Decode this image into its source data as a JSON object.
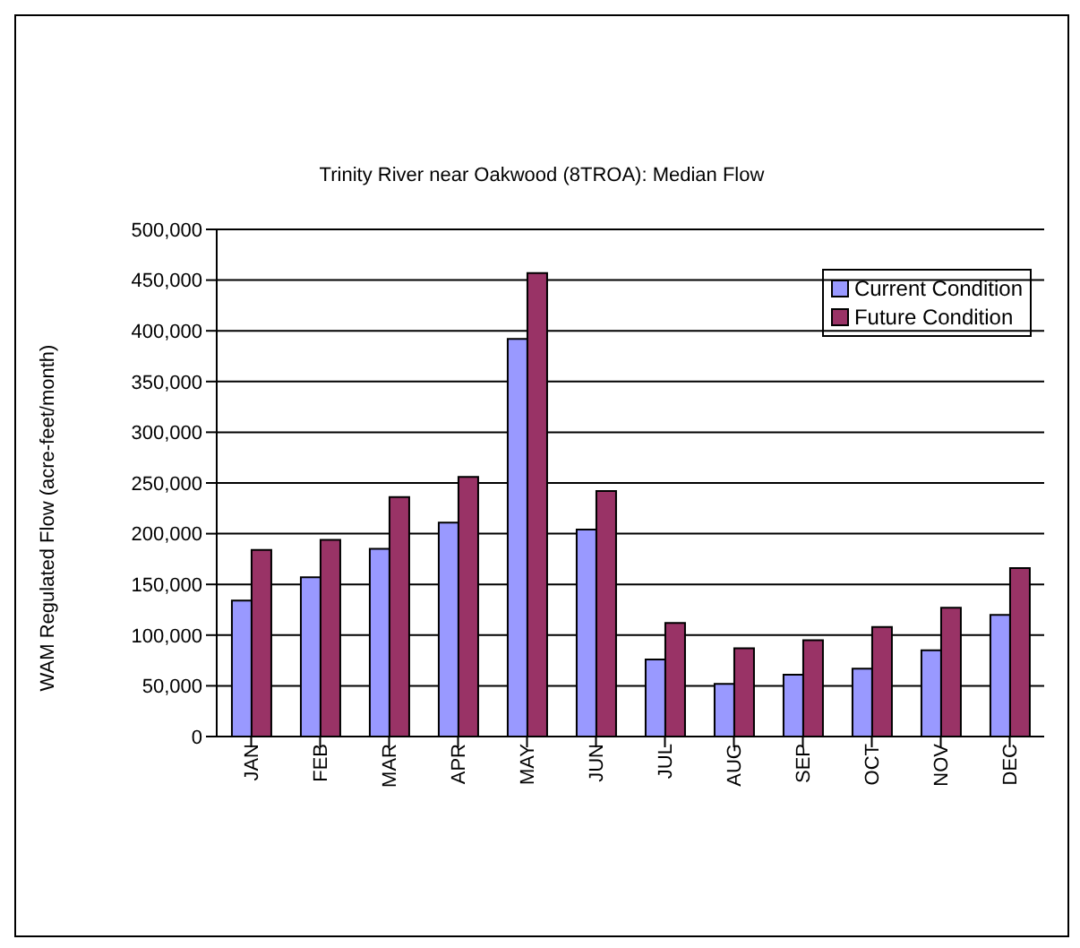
{
  "chart_data": {
    "type": "bar",
    "title": "Trinity River near Oakwood (8TROA): Median Flow",
    "ylabel": "WAM Regulated Flow (acre-feet/month)",
    "categories": [
      "JAN",
      "FEB",
      "MAR",
      "APR",
      "MAY",
      "JUN",
      "JUL",
      "AUG",
      "SEP",
      "OCT",
      "NOV",
      "DEC"
    ],
    "series": [
      {
        "name": "Current Condition",
        "color": "#9999ff",
        "values": [
          134000,
          157000,
          185000,
          211000,
          392000,
          204000,
          76000,
          52000,
          61000,
          67000,
          85000,
          120000
        ]
      },
      {
        "name": "Future Condition",
        "color": "#993366",
        "values": [
          184000,
          194000,
          236000,
          256000,
          457000,
          242000,
          112000,
          87000,
          95000,
          108000,
          127000,
          166000
        ]
      }
    ],
    "ylim": [
      0,
      500000
    ],
    "yticks": [
      0,
      {
        "value": 50000,
        "label": "50,000"
      },
      {
        "value": 100000,
        "label": "100,000"
      },
      {
        "value": 150000,
        "label": "150,000"
      },
      {
        "value": 200000,
        "label": "200,000"
      },
      {
        "value": 250000,
        "label": "250,000"
      },
      {
        "value": 300000,
        "label": "300,000"
      },
      {
        "value": 350000,
        "label": "350,000"
      },
      {
        "value": 400000,
        "label": "400,000"
      },
      {
        "value": 450000,
        "label": "450,000"
      },
      {
        "value": 500000,
        "label": "500,000"
      }
    ],
    "grid": "y",
    "legend": "top right"
  }
}
